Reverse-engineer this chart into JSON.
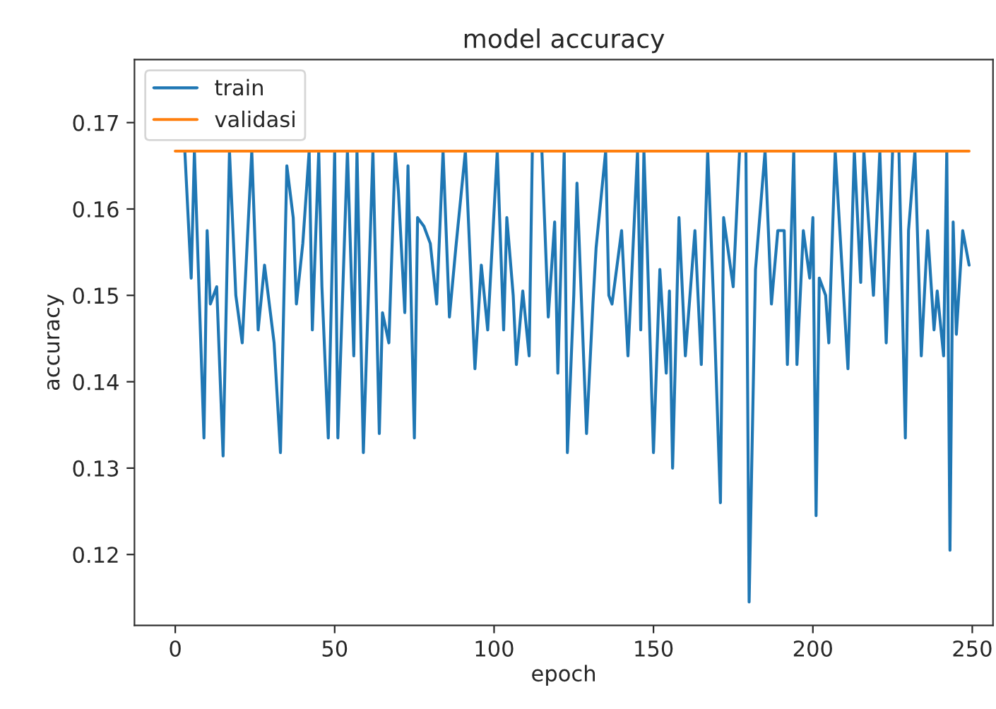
{
  "chart_data": {
    "type": "line",
    "title": "model accuracy",
    "xlabel": "epoch",
    "ylabel": "accuracy",
    "xlim": [
      -12.8,
      256.5
    ],
    "ylim": [
      0.1118,
      0.1773
    ],
    "xticks": [
      0,
      50,
      100,
      150,
      200,
      250
    ],
    "yticks": [
      {
        "value": 0.12,
        "label": "0.12"
      },
      {
        "value": 0.13,
        "label": "0.13"
      },
      {
        "value": 0.14,
        "label": "0.14"
      },
      {
        "value": 0.15,
        "label": "0.15"
      },
      {
        "value": 0.16,
        "label": "0.16"
      },
      {
        "value": 0.17,
        "label": "0.17"
      }
    ],
    "grid": false,
    "legend": "top left",
    "series": [
      {
        "name": "train",
        "color": "#1f77b4",
        "x": [
          3,
          5,
          6,
          9,
          10,
          11,
          13,
          15,
          17,
          19,
          21,
          24,
          26,
          28,
          31,
          33,
          35,
          37,
          38,
          40,
          42,
          43,
          45,
          46,
          48,
          50,
          51,
          54,
          56,
          57,
          59,
          62,
          64,
          65,
          67,
          69,
          70,
          72,
          73,
          75,
          76,
          78,
          80,
          82,
          84,
          86,
          88,
          91,
          94,
          96,
          98,
          101,
          103,
          104,
          106,
          107,
          109,
          111,
          112,
          115,
          117,
          119,
          120,
          122,
          123,
          125,
          126,
          129,
          131,
          132,
          135,
          136,
          137,
          140,
          142,
          145,
          146,
          147,
          148,
          150,
          152,
          154,
          155,
          156,
          158,
          160,
          163,
          165,
          167,
          169,
          171,
          172,
          175,
          177,
          179,
          180,
          182,
          185,
          187,
          189,
          191,
          192,
          194,
          195,
          197,
          199,
          200,
          201,
          202,
          204,
          205,
          207,
          211,
          213,
          215,
          216,
          219,
          221,
          223,
          225,
          227,
          229,
          230,
          232,
          234,
          236,
          238,
          239,
          241,
          242,
          243,
          244,
          245,
          247,
          249
        ],
        "values": [
          0.1667,
          0.152,
          0.1667,
          0.1335,
          0.1575,
          0.149,
          0.151,
          0.1314,
          0.1667,
          0.15,
          0.1445,
          0.1667,
          0.146,
          0.1535,
          0.1445,
          0.1318,
          0.165,
          0.159,
          0.149,
          0.156,
          0.1667,
          0.146,
          0.1667,
          0.151,
          0.1335,
          0.1667,
          0.1335,
          0.1667,
          0.143,
          0.1667,
          0.1318,
          0.1667,
          0.134,
          0.148,
          0.1445,
          0.1667,
          0.162,
          0.148,
          0.165,
          0.1335,
          0.159,
          0.158,
          0.156,
          0.149,
          0.1667,
          0.1475,
          0.1555,
          0.1667,
          0.1415,
          0.1535,
          0.146,
          0.1667,
          0.146,
          0.159,
          0.15,
          0.142,
          0.1505,
          0.143,
          0.1667,
          0.1667,
          0.1475,
          0.1585,
          0.141,
          0.1667,
          0.1318,
          0.15,
          0.163,
          0.134,
          0.149,
          0.1555,
          0.1667,
          0.15,
          0.149,
          0.1575,
          0.143,
          0.1667,
          0.146,
          0.1667,
          0.156,
          0.1318,
          0.153,
          0.141,
          0.1505,
          0.13,
          0.159,
          0.143,
          0.1575,
          0.142,
          0.1667,
          0.148,
          0.126,
          0.159,
          0.151,
          0.1667,
          0.1667,
          0.1145,
          0.153,
          0.1667,
          0.149,
          0.1575,
          0.1575,
          0.142,
          0.1667,
          0.142,
          0.1575,
          0.152,
          0.159,
          0.1245,
          0.152,
          0.15,
          0.1445,
          0.1667,
          0.1415,
          0.1667,
          0.1515,
          0.1667,
          0.15,
          0.1667,
          0.1445,
          0.1667,
          0.1667,
          0.1335,
          0.1575,
          0.1667,
          0.143,
          0.1575,
          0.146,
          0.1505,
          0.143,
          0.1667,
          0.1205,
          0.1585,
          0.1455,
          0.1575,
          0.1535
        ]
      },
      {
        "name": "validasi",
        "color": "#ff7f0e",
        "x": [
          0,
          249
        ],
        "values": [
          0.1667,
          0.1667
        ]
      }
    ]
  }
}
